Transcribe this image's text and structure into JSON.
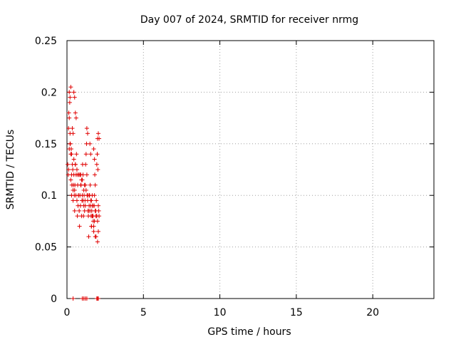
{
  "chart_data": {
    "type": "scatter",
    "title": "Day 007 of 2024, SRMTID for receiver nrmg",
    "xlabel": "GPS time / hours",
    "ylabel": "SRMTID / TECUs",
    "xlim": [
      0,
      24
    ],
    "ylim": [
      0,
      0.25
    ],
    "xticks": [
      0,
      5,
      10,
      15,
      20
    ],
    "xtick_labels": [
      "0",
      "5",
      "10",
      "15",
      "20"
    ],
    "yticks": [
      0,
      0.05,
      0.1,
      0.15,
      0.2,
      0.25
    ],
    "ytick_labels": [
      "0",
      "0.05",
      "0.1",
      "0.15",
      "0.2",
      "0.25"
    ],
    "grid": true,
    "marker": "+",
    "marker_color": "#e00000",
    "series": [
      {
        "name": "SRMTID",
        "x": [
          0.05,
          0.08,
          0.1,
          0.12,
          0.15,
          0.18,
          0.2,
          0.22,
          0.25,
          0.28,
          0.3,
          0.3,
          0.32,
          0.35,
          0.38,
          0.4,
          0.4,
          0.42,
          0.45,
          0.48,
          0.5,
          0.52,
          0.55,
          0.58,
          0.6,
          0.62,
          0.65,
          0.68,
          0.7,
          0.72,
          0.75,
          0.78,
          0.8,
          0.82,
          0.85,
          0.88,
          0.9,
          0.92,
          0.95,
          0.98,
          1.0,
          1.02,
          1.05,
          1.08,
          1.1,
          1.12,
          1.15,
          1.18,
          1.2,
          1.22,
          1.25,
          1.28,
          1.3,
          1.32,
          1.35,
          1.38,
          1.4,
          1.42,
          1.45,
          1.48,
          1.5,
          1.52,
          1.55,
          1.58,
          1.6,
          1.62,
          1.65,
          1.68,
          1.7,
          1.72,
          1.75,
          1.78,
          1.8,
          1.82,
          1.85,
          1.88,
          1.9,
          1.92,
          1.95,
          1.98,
          2.0,
          2.02,
          2.05,
          2.08,
          2.1,
          0.15,
          0.2,
          0.25,
          0.45,
          0.5,
          0.55,
          0.6,
          0.35,
          0.4,
          1.3,
          1.35,
          1.5,
          1.55,
          1.75,
          1.8,
          2.05,
          2.1,
          0.2,
          0.3,
          0.55,
          0.65,
          0.85,
          1.0,
          1.15,
          1.25,
          1.45,
          1.6,
          1.7,
          1.85,
          1.95,
          2.0,
          0.1,
          0.25,
          0.5,
          0.75,
          0.9,
          1.05,
          1.2,
          1.4,
          1.6,
          1.8,
          1.9,
          2.05,
          0.15,
          0.45,
          0.7,
          0.95,
          1.1,
          1.35,
          1.55,
          1.65,
          1.75,
          1.85,
          2.0,
          0.4,
          1.0,
          1.1,
          1.2,
          1.3,
          1.95,
          2.0,
          2.05
        ],
        "y": [
          0.13,
          0.12,
          0.165,
          0.18,
          0.2,
          0.19,
          0.16,
          0.15,
          0.14,
          0.145,
          0.12,
          0.1,
          0.11,
          0.13,
          0.125,
          0.105,
          0.095,
          0.11,
          0.12,
          0.1,
          0.085,
          0.11,
          0.13,
          0.1,
          0.12,
          0.14,
          0.095,
          0.08,
          0.11,
          0.09,
          0.1,
          0.12,
          0.085,
          0.07,
          0.1,
          0.09,
          0.12,
          0.11,
          0.08,
          0.095,
          0.1,
          0.13,
          0.12,
          0.08,
          0.09,
          0.1,
          0.085,
          0.095,
          0.11,
          0.13,
          0.14,
          0.15,
          0.12,
          0.1,
          0.095,
          0.085,
          0.08,
          0.06,
          0.09,
          0.1,
          0.085,
          0.11,
          0.095,
          0.08,
          0.07,
          0.085,
          0.1,
          0.09,
          0.08,
          0.075,
          0.065,
          0.09,
          0.1,
          0.12,
          0.11,
          0.085,
          0.08,
          0.095,
          0.13,
          0.14,
          0.155,
          0.125,
          0.09,
          0.085,
          0.08,
          0.175,
          0.195,
          0.205,
          0.2,
          0.195,
          0.18,
          0.175,
          0.165,
          0.16,
          0.165,
          0.16,
          0.15,
          0.14,
          0.145,
          0.135,
          0.16,
          0.155,
          0.15,
          0.14,
          0.13,
          0.125,
          0.12,
          0.115,
          0.11,
          0.105,
          0.1,
          0.095,
          0.09,
          0.085,
          0.08,
          0.075,
          0.125,
          0.115,
          0.105,
          0.1,
          0.11,
          0.095,
          0.09,
          0.085,
          0.07,
          0.075,
          0.06,
          0.065,
          0.145,
          0.135,
          0.12,
          0.115,
          0.105,
          0.1,
          0.09,
          0.08,
          0.07,
          0.06,
          0.055,
          0,
          0,
          0,
          0,
          0,
          0,
          0,
          0
        ]
      }
    ]
  }
}
